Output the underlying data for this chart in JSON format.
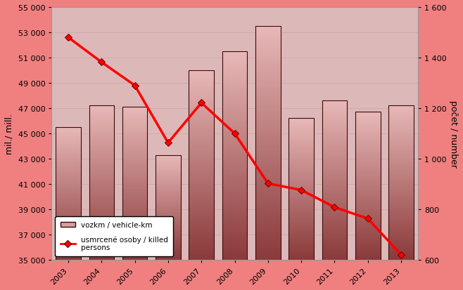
{
  "years": [
    2003,
    2004,
    2005,
    2006,
    2007,
    2008,
    2009,
    2010,
    2011,
    2012,
    2013
  ],
  "vozkm": [
    45500,
    47200,
    47100,
    43300,
    50000,
    51500,
    53500,
    46200,
    47600,
    46700,
    47200
  ],
  "killed": [
    1480,
    1382,
    1290,
    1063,
    1221,
    1100,
    902,
    876,
    808,
    763,
    620
  ],
  "bar_face_color_top": "#e8b8b8",
  "bar_face_color_bottom": "#8b3a3a",
  "bar_edge_color": "#3a0a0a",
  "line_color": "#ff0000",
  "marker_color": "#ff0000",
  "marker_edge_color": "#800000",
  "background_outer": "#f08080",
  "background_plot": "#ddb8b8",
  "left_ylabel": "mil./ mill.",
  "right_ylabel": "počet / number",
  "ylim_left": [
    35000,
    55000
  ],
  "ylim_right": [
    600,
    1600
  ],
  "yticks_left": [
    35000,
    37000,
    39000,
    41000,
    43000,
    45000,
    47000,
    49000,
    51000,
    53000,
    55000
  ],
  "yticks_left_labels": [
    "35 000",
    "37 000",
    "39 000",
    "41 000",
    "43 000",
    "45 000",
    "47 000",
    "49 000",
    "51 000",
    "53 000",
    "55 000"
  ],
  "yticks_right": [
    600,
    800,
    1000,
    1200,
    1400,
    1600
  ],
  "yticks_right_labels": [
    "600",
    "800",
    "1 000",
    "1 200",
    "1 400",
    "1 600"
  ],
  "legend_bar_label": "vozkm / vehicle-km",
  "legend_line_label": "usmrcené osoby / killed\npersons",
  "grid_color": "#c8a8a8",
  "figsize": [
    6.58,
    4.14
  ],
  "dpi": 100
}
